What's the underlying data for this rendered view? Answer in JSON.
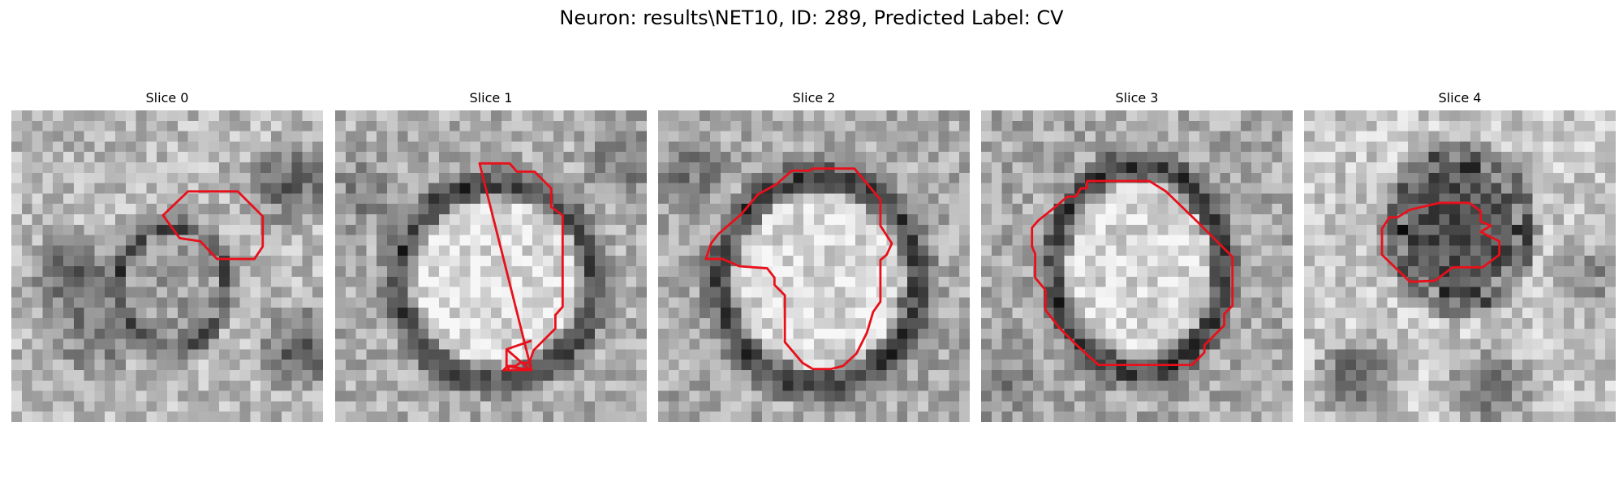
{
  "figure": {
    "title": "Neuron: results\\NET10, ID: 289, Predicted Label: CV",
    "outline_color": "#e8101a",
    "image_colormap": "grayscale",
    "grid_size": 30
  },
  "slices": [
    {
      "title": "Slice 0",
      "contour": [
        [
          17,
          7.8
        ],
        [
          21.8,
          7.8
        ],
        [
          24.2,
          10.2
        ],
        [
          24.2,
          13.1
        ],
        [
          23.4,
          14.3
        ],
        [
          19.8,
          14.3
        ],
        [
          18.2,
          12.6
        ],
        [
          16.2,
          12.3
        ],
        [
          14.6,
          10.1
        ]
      ]
    },
    {
      "title": "Slice 1",
      "contour": [
        [
          13.9,
          5.1
        ],
        [
          16.8,
          5.1
        ],
        [
          17.5,
          5.9
        ],
        [
          19.2,
          5.9
        ],
        [
          20.8,
          7.5
        ],
        [
          20.8,
          9.3
        ],
        [
          21.9,
          10.1
        ],
        [
          21.9,
          18.9
        ],
        [
          21.2,
          19.7
        ],
        [
          21.2,
          21
        ],
        [
          19.1,
          23.1
        ],
        [
          18.7,
          24.3
        ],
        [
          17.8,
          24.3
        ],
        [
          17.4,
          24.6
        ],
        [
          16.6,
          24.6
        ],
        [
          16.2,
          25
        ],
        [
          18.9,
          25
        ],
        [
          16.5,
          24.6
        ],
        [
          16.5,
          23
        ],
        [
          18.8,
          22.2
        ],
        [
          16.5,
          23
        ],
        [
          18.8,
          25
        ],
        [
          18.8,
          25
        ],
        [
          16.8,
          25
        ],
        [
          16.5,
          24.6
        ],
        [
          18.9,
          25.0
        ]
      ]
    },
    {
      "title": "Slice 2",
      "contour": [
        [
          12.9,
          5.8
        ],
        [
          14.6,
          5.8
        ],
        [
          14.9,
          5.6
        ],
        [
          18.9,
          5.6
        ],
        [
          21.4,
          8.6
        ],
        [
          21.4,
          10.5
        ],
        [
          21.4,
          11.1
        ],
        [
          22.5,
          12.8
        ],
        [
          22.0,
          13.9
        ],
        [
          21.4,
          14.4
        ],
        [
          21.4,
          18.4
        ],
        [
          20.7,
          19.4
        ],
        [
          20.1,
          21.4
        ],
        [
          19.1,
          23.4
        ],
        [
          17.8,
          24.6
        ],
        [
          16.6,
          24.9
        ],
        [
          14.9,
          24.9
        ],
        [
          13.9,
          24.3
        ],
        [
          12.2,
          22.3
        ],
        [
          12.2,
          17.8
        ],
        [
          11.2,
          16.8
        ],
        [
          11.2,
          16.1
        ],
        [
          10.5,
          15.2
        ],
        [
          7.8,
          15.0
        ],
        [
          6.2,
          14.3
        ],
        [
          4.6,
          14.3
        ],
        [
          5.1,
          12.8
        ],
        [
          5.8,
          11.9
        ],
        [
          8.0,
          10.0
        ],
        [
          9.6,
          8.1
        ],
        [
          11.4,
          7.1
        ]
      ]
    },
    {
      "title": "Slice 3",
      "contour": [
        [
          10.2,
          6.8
        ],
        [
          16.2,
          6.8
        ],
        [
          17.8,
          7.8
        ],
        [
          20.8,
          10.7
        ],
        [
          20.8,
          10.7
        ],
        [
          22.4,
          12.3
        ],
        [
          24.2,
          14.1
        ],
        [
          24.2,
          18.8
        ],
        [
          23.4,
          19.6
        ],
        [
          23.4,
          20.7
        ],
        [
          21.5,
          22.6
        ],
        [
          21.5,
          23.3
        ],
        [
          20.3,
          24.5
        ],
        [
          11.3,
          24.5
        ],
        [
          9.2,
          22.6
        ],
        [
          7.5,
          20.9
        ],
        [
          6.2,
          19.2
        ],
        [
          6.2,
          17.3
        ],
        [
          5.2,
          16.1
        ],
        [
          5.2,
          13.8
        ],
        [
          4.9,
          13.1
        ],
        [
          4.9,
          11.3
        ],
        [
          5.5,
          10.6
        ],
        [
          7.5,
          9.0
        ],
        [
          8.3,
          8.3
        ],
        [
          9.1,
          8.3
        ],
        [
          9.6,
          7.5
        ],
        [
          10.2,
          7.5
        ]
      ]
    },
    {
      "title": "Slice 4",
      "contour": [
        [
          13.1,
          8.9
        ],
        [
          15.9,
          8.9
        ],
        [
          17.0,
          9.7
        ],
        [
          17.0,
          10.7
        ],
        [
          18.0,
          11.1
        ],
        [
          17.0,
          11.7
        ],
        [
          18.8,
          12.6
        ],
        [
          18.8,
          13.9
        ],
        [
          17.2,
          15.1
        ],
        [
          14.3,
          15.1
        ],
        [
          12.6,
          16.4
        ],
        [
          10.2,
          16.5
        ],
        [
          7.5,
          13.9
        ],
        [
          7.5,
          11.4
        ],
        [
          8.2,
          10.3
        ],
        [
          9.0,
          10.3
        ],
        [
          10.1,
          9.6
        ],
        [
          11.3,
          9.3
        ]
      ]
    }
  ]
}
